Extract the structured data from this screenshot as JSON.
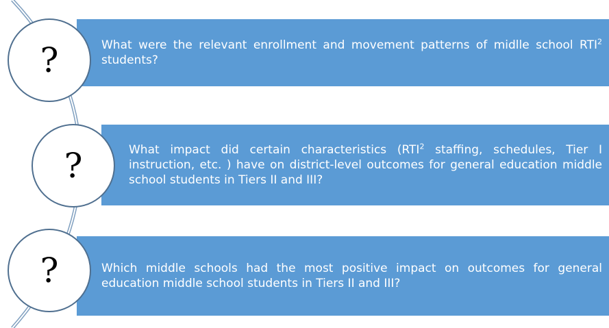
{
  "questions": [
    {
      "mark": "?",
      "text": [
        "What were the relevant enrollment and movement patterns of midlle school RTI",
        "2",
        " students?"
      ]
    },
    {
      "mark": "?",
      "text": [
        "What impact did certain characteristics (RTI",
        "2",
        " staffing, schedules, Tier I instruction, etc.  ) have on district-level outcomes for general education middle school students in Tiers II and III?"
      ]
    },
    {
      "mark": "?",
      "text": [
        "Which middle schools had the most positive impact on outcomes for general education middle school students in Tiers II and III?"
      ]
    }
  ]
}
